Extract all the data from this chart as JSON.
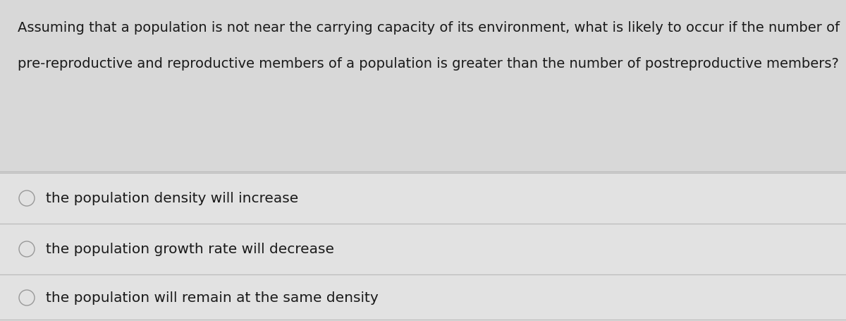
{
  "background_color": "#d8d8d8",
  "question_area_color": "#d8d8d8",
  "option_area_color": "#e8e8e8",
  "divider_color": "#bbbbbb",
  "text_color": "#1a1a1a",
  "question_line1": "Assuming that a population is not near the carrying capacity of its environment, what is likely to occur if the number of",
  "question_line2": "pre-reproductive and reproductive members of a population is greater than the number of postreproductive members?",
  "options": [
    "the population density will increase",
    "the population growth rate will decrease",
    "the population will remain at the same density"
  ],
  "question_fontsize": 14.0,
  "option_fontsize": 14.5,
  "circle_color": "#999999",
  "fig_width": 12.0,
  "fig_height": 4.56,
  "dpi": 100
}
